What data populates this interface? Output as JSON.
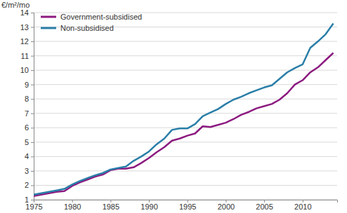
{
  "chart_data": {
    "type": "line",
    "y_label": "€/m²/mo",
    "x": [
      1975,
      1976,
      1977,
      1978,
      1979,
      1980,
      1981,
      1982,
      1983,
      1984,
      1985,
      1986,
      1987,
      1988,
      1989,
      1990,
      1991,
      1992,
      1993,
      1994,
      1995,
      1996,
      1997,
      1998,
      1999,
      2000,
      2001,
      2002,
      2003,
      2004,
      2005,
      2006,
      2007,
      2008,
      2009,
      2010,
      2011,
      2012,
      2013,
      2014
    ],
    "series": [
      {
        "name": "Government-subsidised",
        "color": "#8c1a80",
        "values": [
          1.25,
          1.35,
          1.45,
          1.55,
          1.6,
          1.95,
          2.2,
          2.4,
          2.6,
          2.75,
          3.05,
          3.15,
          3.15,
          3.25,
          3.55,
          3.9,
          4.3,
          4.65,
          5.1,
          5.25,
          5.45,
          5.6,
          6.1,
          6.05,
          6.2,
          6.35,
          6.6,
          6.9,
          7.1,
          7.35,
          7.5,
          7.65,
          7.95,
          8.4,
          9.0,
          9.3,
          9.85,
          10.2,
          10.7,
          11.2
        ]
      },
      {
        "name": "Non-subsidised",
        "color": "#2a7ea8",
        "values": [
          1.35,
          1.45,
          1.55,
          1.65,
          1.75,
          2.05,
          2.3,
          2.5,
          2.7,
          2.85,
          3.1,
          3.2,
          3.3,
          3.7,
          4.0,
          4.35,
          4.85,
          5.25,
          5.85,
          5.95,
          5.95,
          6.25,
          6.8,
          7.05,
          7.3,
          7.65,
          7.95,
          8.15,
          8.4,
          8.6,
          8.8,
          8.95,
          9.4,
          9.85,
          10.15,
          10.4,
          11.55,
          12.0,
          12.5,
          13.25
        ]
      }
    ],
    "xlim": [
      1975,
      2014.5
    ],
    "xticks": [
      1975,
      1980,
      1985,
      1990,
      1995,
      2000,
      2005,
      2010
    ],
    "ylim": [
      1,
      14
    ],
    "yticks": [
      1,
      2,
      3,
      4,
      5,
      6,
      7,
      8,
      9,
      10,
      11,
      12,
      13,
      14
    ],
    "grid": true,
    "legend": "upper left"
  }
}
